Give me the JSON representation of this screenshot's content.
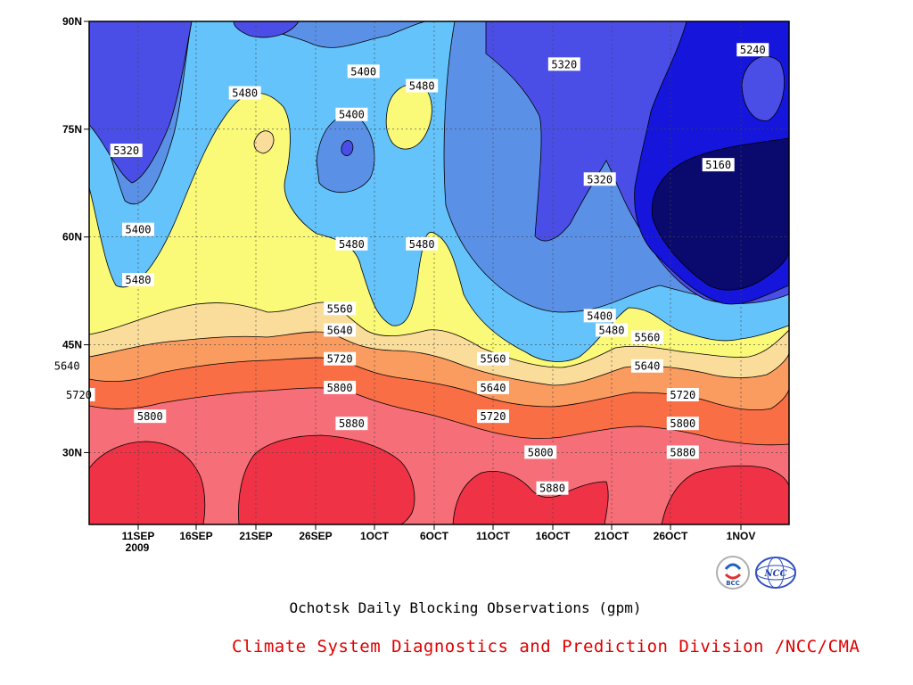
{
  "chart_data": {
    "type": "contour",
    "title": "Ochotsk Daily Blocking Observations (gpm)",
    "x_ticks": [
      "11SEP",
      "16SEP",
      "21SEP",
      "26SEP",
      "1OCT",
      "6OCT",
      "11OCT",
      "16OCT",
      "21OCT",
      "26OCT",
      "1NOV"
    ],
    "x_year_label": "2009",
    "y_ticks": [
      "30N",
      "45N",
      "60N",
      "75N",
      "90N"
    ],
    "ylim": [
      20,
      90
    ],
    "levels": [
      5160,
      5240,
      5320,
      5400,
      5480,
      5560,
      5640,
      5720,
      5800,
      5880
    ],
    "contour_labels": [
      {
        "text": "5240",
        "x": "Nov 2",
        "y": 86
      },
      {
        "text": "5320",
        "x": "Oct 17",
        "y": 84
      },
      {
        "text": "5320",
        "x": "Sep 10",
        "y": 72
      },
      {
        "text": "5320",
        "x": "Oct 20",
        "y": 68
      },
      {
        "text": "5160",
        "x": "Oct 30",
        "y": 70
      },
      {
        "text": "5400",
        "x": "Sep 30",
        "y": 83
      },
      {
        "text": "5400",
        "x": "Sep 29",
        "y": 77
      },
      {
        "text": "5400",
        "x": "Sep 11",
        "y": 61
      },
      {
        "text": "5400",
        "x": "Oct 20",
        "y": 49
      },
      {
        "text": "5480",
        "x": "Sep 20",
        "y": 80
      },
      {
        "text": "5480",
        "x": "Oct 5",
        "y": 81
      },
      {
        "text": "5480",
        "x": "Sep 29",
        "y": 59
      },
      {
        "text": "5480",
        "x": "Oct 5",
        "y": 59
      },
      {
        "text": "5480",
        "x": "Sep 11",
        "y": 54
      },
      {
        "text": "5480",
        "x": "Oct 21",
        "y": 47
      },
      {
        "text": "5560",
        "x": "Sep 28",
        "y": 50
      },
      {
        "text": "5560",
        "x": "Oct 11",
        "y": 43
      },
      {
        "text": "5560",
        "x": "Oct 24",
        "y": 46
      },
      {
        "text": "5640",
        "x": "Sep 28",
        "y": 47
      },
      {
        "text": "5640",
        "x": "Sep 5",
        "y": 42
      },
      {
        "text": "5640",
        "x": "Oct 11",
        "y": 39
      },
      {
        "text": "5640",
        "x": "Oct 24",
        "y": 42
      },
      {
        "text": "5720",
        "x": "Sep 28",
        "y": 43
      },
      {
        "text": "5720",
        "x": "Sep 6",
        "y": 38
      },
      {
        "text": "5720",
        "x": "Oct 11",
        "y": 35
      },
      {
        "text": "5720",
        "x": "Oct 27",
        "y": 38
      },
      {
        "text": "5800",
        "x": "Sep 28",
        "y": 39
      },
      {
        "text": "5800",
        "x": "Sep 12",
        "y": 35
      },
      {
        "text": "5800",
        "x": "Oct 15",
        "y": 30
      },
      {
        "text": "5800",
        "x": "Oct 27",
        "y": 34
      },
      {
        "text": "5880",
        "x": "Sep 29",
        "y": 34
      },
      {
        "text": "5880",
        "x": "Oct 16",
        "y": 25
      },
      {
        "text": "5880",
        "x": "Oct 27",
        "y": 30
      }
    ],
    "grid": true,
    "grid_style": "dotted"
  },
  "footer": "Climate System Diagnostics and Prediction Division /NCC/CMA",
  "logos": [
    "BCC",
    "NCC"
  ],
  "colors": {
    "c5160": "#0a0a6e",
    "c5240": "#1515dc",
    "c5320": "#4a4ee6",
    "c5400": "#5a91e6",
    "c5480": "#64c3fa",
    "c5560": "#fafa78",
    "c5640": "#fadc9b",
    "c5720": "#fa9b5f",
    "c5800": "#fa6e46",
    "c5880": "#f56e78",
    "c5960": "#f03246",
    "footer": "#e00000"
  }
}
